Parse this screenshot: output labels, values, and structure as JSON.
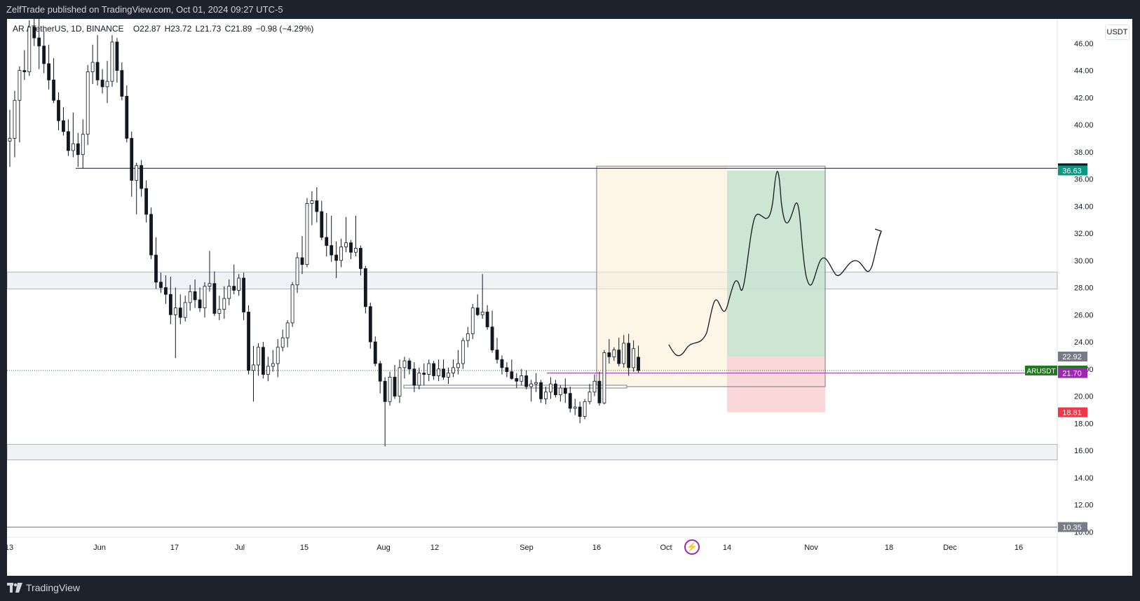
{
  "header": {
    "publisher_text": "ZelfTrade published on TradingView.com, Oct 01, 2024 09:27 UTC-5"
  },
  "legend": {
    "symbol": "AR / TetherUS, 1D, BINANCE",
    "open": "O22.87",
    "high": "H23.72",
    "low": "L21.73",
    "close": "C21.89",
    "change": "−0.98 (−4.29%)"
  },
  "currency_button": "USDT",
  "footer": {
    "brand": "TradingView"
  },
  "chart_data": {
    "type": "candlestick",
    "symbol": "ARUSDT",
    "timeframe": "1D",
    "exchange": "BINANCE",
    "x_tick_labels": [
      "13",
      "Jun",
      "17",
      "Jul",
      "15",
      "Aug",
      "12",
      "Sep",
      "16",
      "Oct",
      "14",
      "Nov",
      "18",
      "Dec",
      "16"
    ],
    "y_tick_labels": [
      "10.00",
      "12.00",
      "14.00",
      "16.00",
      "18.00",
      "20.00",
      "22.00",
      "24.00",
      "26.00",
      "28.00",
      "30.00",
      "32.00",
      "34.00",
      "36.00",
      "38.00",
      "40.00",
      "42.00",
      "44.00",
      "46.00"
    ],
    "ylim": [
      9.6,
      47.8
    ],
    "price_badges": [
      {
        "label": "",
        "value": "36.79",
        "color": "#131722"
      },
      {
        "label": "",
        "value": "36.63",
        "color": "#089981"
      },
      {
        "label": "",
        "value": "22.92",
        "color": "#787b86"
      },
      {
        "label": "ARUSDT",
        "value": "21.89",
        "color": "#1f7a1f"
      },
      {
        "label": "",
        "value": "21.70",
        "color": "#9c27b0"
      },
      {
        "label": "",
        "value": "18.81",
        "color": "#f23645"
      },
      {
        "label": "",
        "value": "10.35",
        "color": "#787b86"
      }
    ],
    "horizontal_lines": [
      36.79,
      10.35
    ],
    "zones": [
      {
        "from": 27.9,
        "to": 29.15
      },
      {
        "from": 15.3,
        "to": 16.45
      }
    ],
    "position_tool": {
      "entry": 22.92,
      "take_profit": 36.63,
      "stop_loss": 18.81,
      "range_box_top": 36.95,
      "range_box_bottom": 20.7,
      "current_price": 21.89,
      "last_price_line": 21.7
    },
    "candles": [
      [
        38.8,
        41.1,
        36.9,
        39.0
      ],
      [
        39.0,
        42.5,
        37.6,
        41.8
      ],
      [
        41.8,
        44.3,
        38.7,
        44.0
      ],
      [
        44.0,
        45.5,
        43.3,
        43.9
      ],
      [
        43.9,
        47.7,
        43.6,
        47.2
      ],
      [
        47.2,
        48.2,
        45.8,
        46.4
      ],
      [
        46.4,
        47.8,
        44.1,
        45.8
      ],
      [
        45.8,
        46.9,
        43.8,
        44.5
      ],
      [
        44.5,
        45.9,
        42.6,
        43.3
      ],
      [
        43.3,
        44.9,
        41.6,
        41.8
      ],
      [
        41.8,
        42.4,
        39.6,
        40.3
      ],
      [
        40.3,
        41.3,
        39.2,
        39.5
      ],
      [
        39.5,
        40.4,
        37.7,
        38.1
      ],
      [
        38.1,
        40.9,
        37.6,
        38.6
      ],
      [
        38.6,
        39.4,
        36.9,
        37.8
      ],
      [
        37.8,
        40.4,
        36.8,
        39.3
      ],
      [
        39.3,
        44.4,
        38.5,
        43.9
      ],
      [
        43.9,
        45.9,
        43.0,
        44.6
      ],
      [
        44.6,
        46.6,
        42.9,
        43.3
      ],
      [
        43.3,
        44.1,
        42.3,
        42.8
      ],
      [
        42.8,
        44.7,
        41.6,
        43.2
      ],
      [
        43.2,
        46.6,
        42.8,
        46.1
      ],
      [
        46.1,
        46.4,
        43.1,
        44.0
      ],
      [
        44.0,
        44.6,
        41.8,
        42.1
      ],
      [
        42.1,
        42.9,
        38.7,
        39.0
      ],
      [
        39.0,
        39.5,
        34.7,
        35.9
      ],
      [
        35.9,
        37.2,
        33.4,
        37.0
      ],
      [
        37.0,
        37.4,
        34.7,
        35.3
      ],
      [
        35.3,
        35.9,
        32.8,
        33.4
      ],
      [
        33.4,
        33.9,
        30.1,
        30.4
      ],
      [
        30.4,
        31.7,
        27.9,
        28.4
      ],
      [
        28.4,
        29.1,
        27.6,
        28.0
      ],
      [
        28.0,
        28.9,
        26.8,
        27.5
      ],
      [
        27.5,
        28.8,
        25.3,
        26.0
      ],
      [
        26.0,
        28.0,
        22.8,
        26.5
      ],
      [
        26.5,
        27.5,
        25.3,
        25.8
      ],
      [
        25.8,
        27.4,
        25.5,
        26.9
      ],
      [
        26.9,
        28.2,
        26.3,
        27.7
      ],
      [
        27.7,
        28.6,
        26.5,
        27.1
      ],
      [
        27.1,
        28.0,
        26.2,
        26.5
      ],
      [
        26.5,
        28.4,
        25.8,
        28.1
      ],
      [
        28.1,
        30.7,
        27.7,
        28.3
      ],
      [
        28.3,
        29.2,
        25.9,
        26.1
      ],
      [
        26.1,
        27.4,
        25.6,
        26.4
      ],
      [
        26.4,
        28.1,
        25.7,
        27.2
      ],
      [
        27.2,
        28.6,
        26.7,
        28.1
      ],
      [
        28.1,
        29.7,
        27.5,
        27.8
      ],
      [
        27.8,
        29.0,
        27.4,
        28.7
      ],
      [
        28.7,
        29.1,
        25.6,
        26.2
      ],
      [
        26.2,
        26.7,
        21.6,
        21.9
      ],
      [
        21.9,
        23.7,
        19.6,
        22.3
      ],
      [
        22.3,
        23.9,
        21.5,
        23.6
      ],
      [
        23.6,
        24.0,
        21.3,
        21.6
      ],
      [
        21.6,
        22.9,
        21.1,
        22.2
      ],
      [
        22.2,
        23.4,
        21.8,
        22.4
      ],
      [
        22.4,
        24.2,
        21.4,
        23.6
      ],
      [
        23.6,
        24.9,
        23.3,
        24.3
      ],
      [
        24.3,
        25.6,
        23.6,
        25.4
      ],
      [
        25.4,
        28.4,
        25.1,
        28.2
      ],
      [
        28.2,
        30.6,
        27.6,
        30.2
      ],
      [
        30.2,
        31.8,
        29.0,
        29.7
      ],
      [
        29.7,
        34.6,
        29.5,
        34.2
      ],
      [
        34.2,
        35.1,
        32.6,
        34.4
      ],
      [
        34.4,
        35.4,
        32.8,
        33.6
      ],
      [
        33.6,
        34.4,
        31.5,
        31.7
      ],
      [
        31.7,
        33.5,
        30.3,
        31.1
      ],
      [
        31.1,
        33.3,
        29.9,
        30.4
      ],
      [
        30.4,
        31.4,
        28.7,
        30.0
      ],
      [
        30.0,
        31.6,
        29.5,
        31.0
      ],
      [
        31.0,
        33.2,
        30.6,
        31.3
      ],
      [
        31.3,
        31.5,
        30.1,
        30.6
      ],
      [
        30.6,
        33.3,
        30.3,
        30.9
      ],
      [
        30.9,
        31.1,
        28.9,
        29.4
      ],
      [
        29.4,
        29.6,
        26.1,
        26.6
      ],
      [
        26.6,
        26.9,
        23.5,
        24.0
      ],
      [
        24.0,
        24.4,
        22.2,
        22.4
      ],
      [
        22.4,
        22.6,
        20.2,
        21.1
      ],
      [
        21.1,
        21.4,
        16.3,
        19.6
      ],
      [
        19.6,
        21.8,
        19.3,
        21.4
      ],
      [
        21.4,
        22.3,
        19.8,
        20.0
      ],
      [
        20.0,
        22.7,
        19.5,
        22.1
      ],
      [
        22.1,
        22.9,
        21.3,
        22.6
      ],
      [
        22.6,
        22.8,
        21.6,
        22.0
      ],
      [
        22.0,
        22.5,
        20.3,
        20.8
      ],
      [
        20.8,
        22.1,
        20.5,
        21.7
      ],
      [
        21.7,
        22.4,
        20.8,
        21.6
      ],
      [
        21.6,
        22.7,
        21.1,
        22.4
      ],
      [
        22.4,
        22.6,
        21.2,
        21.5
      ],
      [
        21.5,
        22.7,
        21.1,
        22.0
      ],
      [
        22.0,
        22.7,
        21.2,
        21.4
      ],
      [
        21.4,
        22.1,
        20.9,
        21.7
      ],
      [
        21.7,
        22.7,
        21.4,
        22.1
      ],
      [
        22.1,
        23.4,
        21.6,
        22.4
      ],
      [
        22.4,
        24.3,
        22.0,
        24.1
      ],
      [
        24.1,
        25.1,
        23.6,
        24.6
      ],
      [
        24.6,
        26.8,
        24.2,
        26.5
      ],
      [
        26.5,
        27.5,
        25.9,
        26.0
      ],
      [
        26.0,
        29.0,
        25.7,
        26.2
      ],
      [
        26.2,
        26.7,
        24.9,
        25.1
      ],
      [
        25.1,
        26.3,
        23.2,
        23.4
      ],
      [
        23.4,
        24.3,
        22.4,
        22.7
      ],
      [
        22.7,
        23.0,
        21.6,
        22.1
      ],
      [
        22.1,
        22.5,
        21.4,
        21.8
      ],
      [
        21.8,
        22.7,
        21.2,
        21.3
      ],
      [
        21.3,
        21.7,
        20.6,
        21.1
      ],
      [
        21.1,
        22.0,
        20.8,
        21.5
      ],
      [
        21.5,
        21.9,
        20.5,
        20.7
      ],
      [
        20.7,
        21.2,
        19.6,
        20.9
      ],
      [
        20.9,
        21.7,
        20.3,
        21.0
      ],
      [
        21.0,
        21.2,
        19.5,
        19.8
      ],
      [
        19.8,
        20.7,
        19.4,
        20.3
      ],
      [
        20.3,
        21.4,
        19.8,
        20.9
      ],
      [
        20.9,
        21.2,
        19.9,
        20.1
      ],
      [
        20.1,
        20.8,
        19.6,
        20.6
      ],
      [
        20.6,
        21.3,
        19.5,
        20.2
      ],
      [
        20.2,
        20.7,
        18.8,
        19.1
      ],
      [
        19.1,
        19.8,
        18.6,
        19.2
      ],
      [
        19.2,
        19.6,
        18.0,
        18.5
      ],
      [
        18.5,
        19.8,
        18.3,
        19.6
      ],
      [
        19.6,
        20.9,
        19.4,
        20.3
      ],
      [
        20.3,
        21.6,
        20.0,
        21.1
      ],
      [
        21.1,
        21.8,
        19.3,
        19.5
      ],
      [
        19.5,
        23.4,
        19.4,
        23.2
      ],
      [
        23.2,
        24.2,
        22.4,
        22.9
      ],
      [
        22.9,
        23.6,
        22.6,
        23.4
      ],
      [
        23.4,
        24.3,
        22.2,
        22.4
      ],
      [
        22.4,
        24.5,
        22.1,
        23.9
      ],
      [
        23.9,
        24.6,
        21.5,
        22.1
      ],
      [
        22.1,
        24.1,
        21.8,
        23.5
      ],
      [
        22.87,
        23.72,
        21.73,
        21.89
      ]
    ]
  }
}
